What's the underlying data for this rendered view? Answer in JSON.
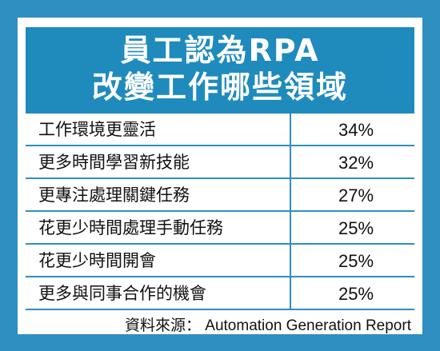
{
  "chart_data": {
    "type": "table",
    "title_lines": [
      "員工認為RPA",
      "改變工作哪些領域"
    ],
    "rows": [
      {
        "label": "工作環境更靈活",
        "value": "34%"
      },
      {
        "label": "更多時間學習新技能",
        "value": "32%"
      },
      {
        "label": "更專注處理關鍵任務",
        "value": "27%"
      },
      {
        "label": "花更少時間處理手動任務",
        "value": "25%"
      },
      {
        "label": "花更少時間開會",
        "value": "25%"
      },
      {
        "label": "更多與同事合作的機會",
        "value": "25%"
      }
    ],
    "values": [
      34,
      32,
      27,
      25,
      25,
      25
    ],
    "unit": "%",
    "source": "資料來源： Automation Generation Report",
    "colors": {
      "frame": "#2f8fc0",
      "title_band": "#1f8bbd",
      "title_text": "#ffffff",
      "rule": "#2f8fc0"
    }
  }
}
